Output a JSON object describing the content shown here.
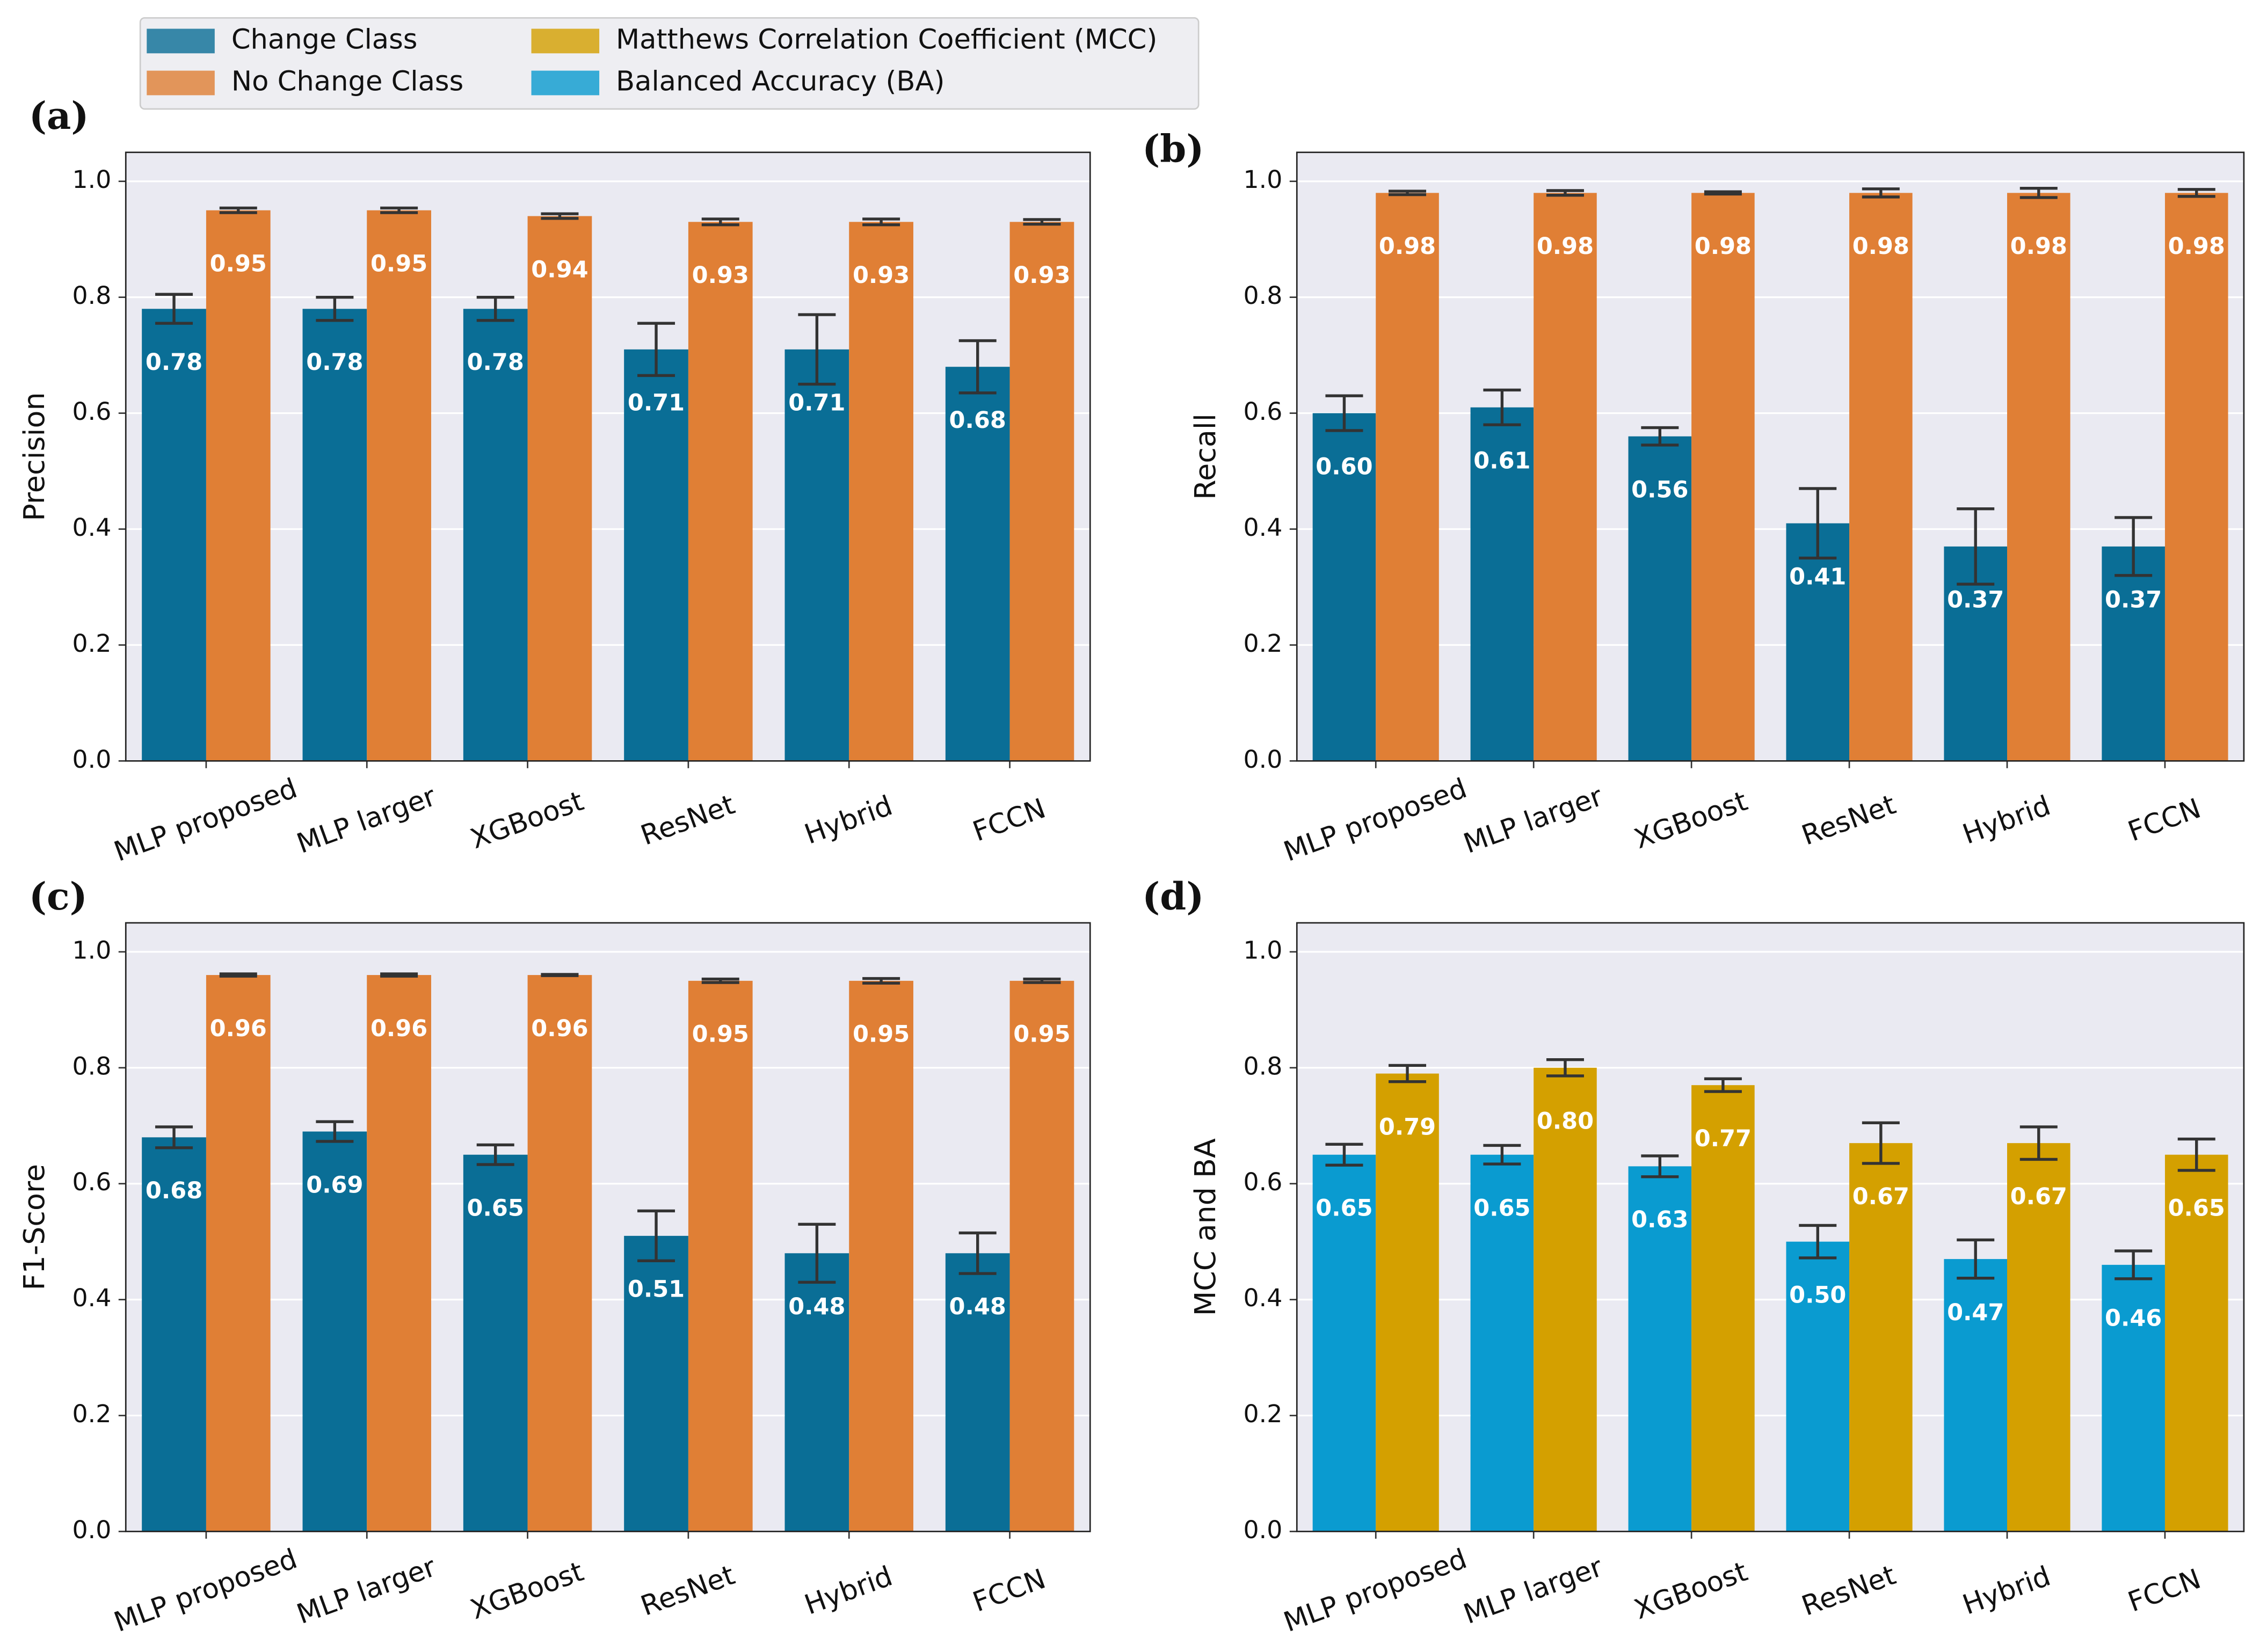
{
  "chart_data": [
    {
      "type": "bar",
      "panel_label": "(a)",
      "y_label": "Precision",
      "categories": [
        "MLP proposed",
        "MLP larger",
        "XGBoost",
        "ResNet",
        "Hybrid",
        "FCCN"
      ],
      "ylim": [
        0,
        1.05
      ],
      "yticks": [
        {
          "value": 0,
          "label": "0.0"
        },
        0.2,
        0.4,
        0.6,
        0.8,
        {
          "value": 1,
          "label": "1.0"
        }
      ],
      "grid": true,
      "series": [
        {
          "name": "Change Class",
          "color": "#0a6e96",
          "values": [
            0.78,
            0.78,
            0.78,
            0.71,
            0.71,
            0.68
          ],
          "value_labels": [
            "0.78",
            "0.78",
            "0.78",
            "0.71",
            "0.71",
            "0.68"
          ],
          "errors": [
            0.025,
            0.02,
            0.02,
            0.045,
            0.06,
            0.045
          ]
        },
        {
          "name": "No Change Class",
          "color": "#e07f35",
          "values": [
            0.95,
            0.95,
            0.94,
            0.93,
            0.93,
            0.93
          ],
          "value_labels": [
            "0.95",
            "0.95",
            "0.94",
            "0.93",
            "0.93",
            "0.93"
          ],
          "errors": [
            0.004,
            0.004,
            0.004,
            0.005,
            0.005,
            0.004
          ]
        }
      ]
    },
    {
      "type": "bar",
      "panel_label": "(b)",
      "y_label": "Recall",
      "categories": [
        "MLP proposed",
        "MLP larger",
        "XGBoost",
        "ResNet",
        "Hybrid",
        "FCCN"
      ],
      "ylim": [
        0,
        1.05
      ],
      "yticks": [
        {
          "value": 0,
          "label": "0.0"
        },
        0.2,
        0.4,
        0.6,
        0.8,
        {
          "value": 1,
          "label": "1.0"
        }
      ],
      "grid": true,
      "series": [
        {
          "name": "Change Class",
          "color": "#0a6e96",
          "values": [
            0.6,
            0.61,
            0.56,
            0.41,
            0.37,
            0.37
          ],
          "value_labels": [
            "0.60",
            "0.61",
            "0.56",
            "0.41",
            "0.37",
            "0.37"
          ],
          "errors": [
            0.03,
            0.03,
            0.015,
            0.06,
            0.065,
            0.05
          ]
        },
        {
          "name": "No Change Class",
          "color": "#e07f35",
          "values": [
            0.98,
            0.98,
            0.98,
            0.98,
            0.98,
            0.98
          ],
          "value_labels": [
            "0.98",
            "0.98",
            "0.98",
            "0.98",
            "0.98",
            "0.98"
          ],
          "errors": [
            0.003,
            0.004,
            0.002,
            0.007,
            0.008,
            0.006
          ]
        }
      ]
    },
    {
      "type": "bar",
      "panel_label": "(c)",
      "y_label": "F1-Score",
      "categories": [
        "MLP proposed",
        "MLP larger",
        "XGBoost",
        "ResNet",
        "Hybrid",
        "FCCN"
      ],
      "ylim": [
        0,
        1.05
      ],
      "yticks": [
        {
          "value": 0,
          "label": "0.0"
        },
        0.2,
        0.4,
        0.6,
        0.8,
        {
          "value": 1,
          "label": "1.0"
        }
      ],
      "grid": true,
      "series": [
        {
          "name": "Change Class",
          "color": "#0a6e96",
          "values": [
            0.68,
            0.69,
            0.65,
            0.51,
            0.48,
            0.48
          ],
          "value_labels": [
            "0.68",
            "0.69",
            "0.65",
            "0.51",
            "0.48",
            "0.48"
          ],
          "errors": [
            0.018,
            0.017,
            0.017,
            0.043,
            0.05,
            0.035
          ]
        },
        {
          "name": "No Change Class",
          "color": "#e07f35",
          "values": [
            0.96,
            0.96,
            0.96,
            0.95,
            0.95,
            0.95
          ],
          "value_labels": [
            "0.96",
            "0.96",
            "0.96",
            "0.95",
            "0.95",
            "0.95"
          ],
          "errors": [
            0.002,
            0.002,
            0.001,
            0.003,
            0.004,
            0.003
          ]
        }
      ]
    },
    {
      "type": "bar",
      "panel_label": "(d)",
      "y_label": "MCC and BA",
      "categories": [
        "MLP proposed",
        "MLP larger",
        "XGBoost",
        "ResNet",
        "Hybrid",
        "FCCN"
      ],
      "ylim": [
        0,
        1.05
      ],
      "yticks": [
        {
          "value": 0,
          "label": "0.0"
        },
        0.2,
        0.4,
        0.6,
        0.8,
        {
          "value": 1,
          "label": "1.0"
        }
      ],
      "grid": true,
      "series": [
        {
          "name": "Balanced Accuracy (BA)",
          "color": "#0a9bd0",
          "values": [
            0.65,
            0.65,
            0.63,
            0.5,
            0.47,
            0.46
          ],
          "value_labels": [
            "0.65",
            "0.65",
            "0.63",
            "0.50",
            "0.47",
            "0.46"
          ],
          "errors": [
            0.018,
            0.016,
            0.018,
            0.028,
            0.033,
            0.024
          ]
        },
        {
          "name": "Matthews Correlation Coefficient (MCC)",
          "color": "#d4a000",
          "values": [
            0.79,
            0.8,
            0.77,
            0.67,
            0.67,
            0.65
          ],
          "value_labels": [
            "0.79",
            "0.80",
            "0.77",
            "0.67",
            "0.67",
            "0.65"
          ],
          "errors": [
            0.014,
            0.014,
            0.011,
            0.035,
            0.028,
            0.027
          ]
        }
      ]
    }
  ]
}
